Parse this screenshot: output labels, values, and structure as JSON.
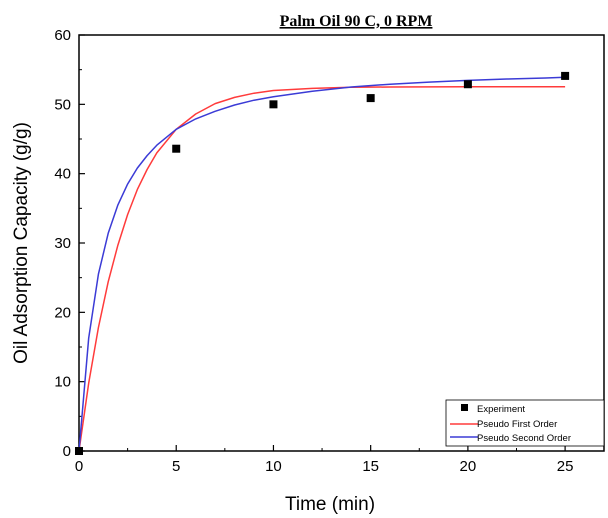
{
  "chart_data": {
    "type": "scatter",
    "title": "Palm Oil 90 C, 0 RPM",
    "xlabel": "Time (min)",
    "ylabel": "Oil Adsorption Capacity (g/g)",
    "xlim": [
      0,
      27
    ],
    "ylim": [
      0,
      60
    ],
    "xticks": [
      0,
      5,
      10,
      15,
      20,
      25
    ],
    "yticks": [
      0,
      10,
      20,
      30,
      40,
      50,
      60
    ],
    "grid": false,
    "legend_position": "bottom-right",
    "series": [
      {
        "name": "Experiment",
        "kind": "markers",
        "marker": "square",
        "color": "#000000",
        "x": [
          0,
          5,
          10,
          15,
          20,
          25
        ],
        "y": [
          0,
          43.6,
          50.0,
          50.9,
          52.9,
          54.1
        ]
      },
      {
        "name": "Pseudo First Order",
        "kind": "line",
        "color": "#ff3b3b",
        "x": [
          0,
          0.5,
          1,
          1.5,
          2,
          2.5,
          3,
          3.5,
          4,
          5,
          6,
          7,
          8,
          9,
          10,
          12,
          14,
          16,
          18,
          20,
          22,
          24,
          25
        ],
        "y": [
          0,
          9.8,
          17.8,
          24.4,
          29.7,
          34.1,
          37.7,
          40.6,
          43.0,
          46.4,
          48.6,
          50.1,
          51.0,
          51.6,
          52.0,
          52.3,
          52.45,
          52.5,
          52.52,
          52.53,
          52.53,
          52.53,
          52.53
        ]
      },
      {
        "name": "Pseudo Second Order",
        "kind": "line",
        "color": "#3b3bd6",
        "x": [
          0,
          0.5,
          1,
          1.5,
          2,
          2.5,
          3,
          3.5,
          4,
          5,
          6,
          7,
          8,
          9,
          10,
          12,
          14,
          16,
          18,
          20,
          22,
          24,
          25
        ],
        "y": [
          0,
          16.3,
          25.5,
          31.4,
          35.5,
          38.5,
          40.8,
          42.6,
          44.1,
          46.4,
          47.9,
          49.0,
          49.9,
          50.6,
          51.1,
          51.9,
          52.5,
          52.9,
          53.2,
          53.45,
          53.65,
          53.8,
          53.9
        ]
      }
    ]
  }
}
